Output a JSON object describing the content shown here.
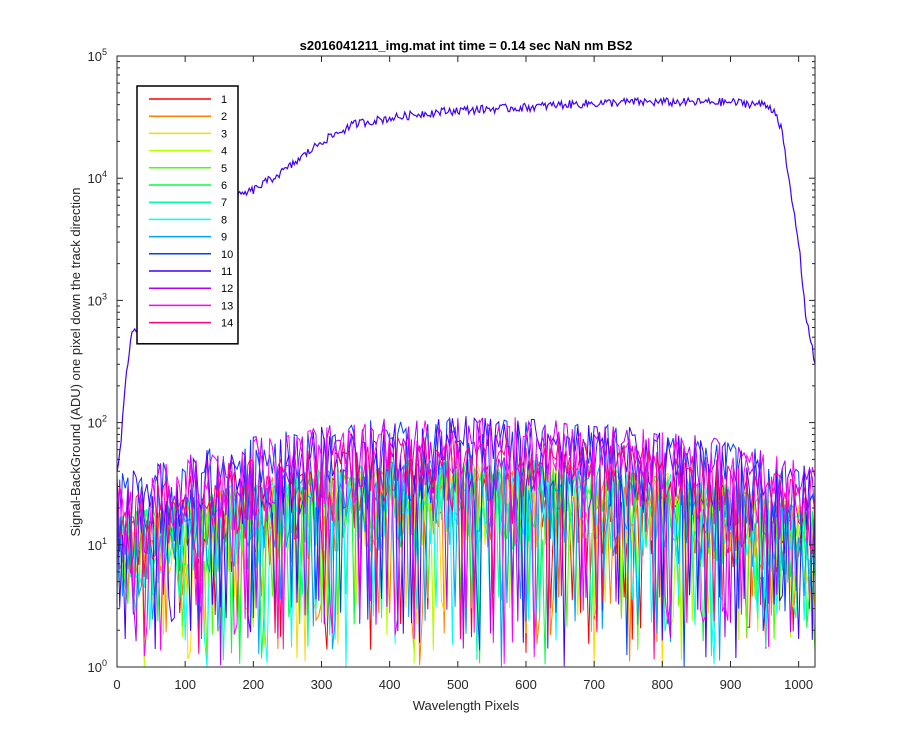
{
  "chart_data": {
    "type": "line",
    "title": "s2016041211_img.mat int time = 0.14 sec  NaN nm BS2",
    "xlabel": "Wavelength Pixels",
    "ylabel": "Signal-BackGround (ADU) one pixel down the track direction",
    "xlim": [
      0,
      1024
    ],
    "ylim": [
      1,
      100000
    ],
    "yscale": "log",
    "x_ticks": [
      "0",
      "100",
      "200",
      "300",
      "400",
      "500",
      "600",
      "700",
      "800",
      "900",
      "1000"
    ],
    "y_ticks": [
      {
        "base": "10",
        "exp": "0"
      },
      {
        "base": "10",
        "exp": "1"
      },
      {
        "base": "10",
        "exp": "2"
      },
      {
        "base": "10",
        "exp": "3"
      },
      {
        "base": "10",
        "exp": "4"
      },
      {
        "base": "10",
        "exp": "5"
      }
    ],
    "legend_position": "top-left",
    "grid": false,
    "series": [
      {
        "name": "1",
        "color": "#ff0000"
      },
      {
        "name": "2",
        "color": "#ff7f00"
      },
      {
        "name": "3",
        "color": "#ffd700"
      },
      {
        "name": "4",
        "color": "#b5ff00"
      },
      {
        "name": "5",
        "color": "#4dff00"
      },
      {
        "name": "6",
        "color": "#00ff40"
      },
      {
        "name": "7",
        "color": "#00ffa8"
      },
      {
        "name": "8",
        "color": "#00ffff"
      },
      {
        "name": "9",
        "color": "#00a0ff"
      },
      {
        "name": "10",
        "color": "#0040ff"
      },
      {
        "name": "11",
        "color": "#4000ff"
      },
      {
        "name": "12",
        "color": "#b000ff"
      },
      {
        "name": "13",
        "color": "#ff00ff"
      },
      {
        "name": "14",
        "color": "#ff0080"
      }
    ],
    "main_series": {
      "name": "11",
      "x": [
        0,
        5,
        10,
        20,
        30,
        40,
        50,
        60,
        80,
        100,
        120,
        150,
        175,
        200,
        250,
        300,
        350,
        400,
        450,
        500,
        550,
        600,
        650,
        700,
        750,
        800,
        850,
        900,
        950,
        965,
        975,
        985,
        1000,
        1010,
        1024
      ],
      "y": [
        40,
        60,
        150,
        500,
        600,
        700,
        600,
        2500,
        4000,
        5500,
        6000,
        6500,
        7000,
        8000,
        12000,
        20000,
        28000,
        31000,
        34000,
        36000,
        37000,
        38000,
        40000,
        41000,
        42000,
        42000,
        42000,
        42000,
        40000,
        36000,
        25000,
        10000,
        3000,
        800,
        300
      ]
    },
    "noise_envelope": {
      "x": [
        0,
        100,
        200,
        300,
        400,
        500,
        600,
        700,
        800,
        900,
        1024
      ],
      "y": [
        35,
        50,
        70,
        85,
        100,
        105,
        100,
        90,
        80,
        65,
        40
      ]
    }
  }
}
